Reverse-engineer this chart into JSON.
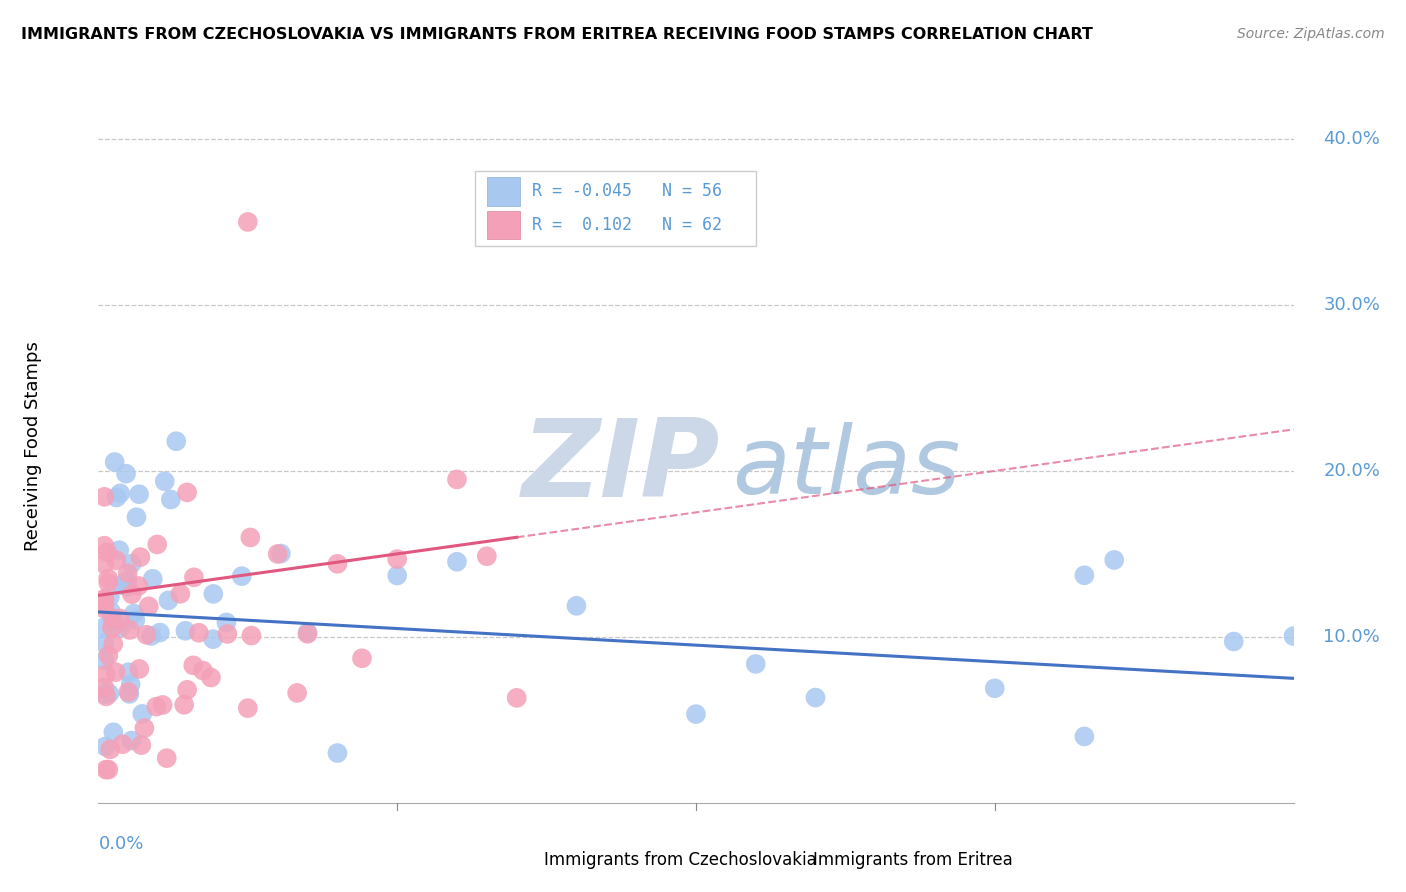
{
  "title": "IMMIGRANTS FROM CZECHOSLOVAKIA VS IMMIGRANTS FROM ERITREA RECEIVING FOOD STAMPS CORRELATION CHART",
  "source": "Source: ZipAtlas.com",
  "ylabel": "Receiving Food Stamps",
  "ytick_labels": [
    "10.0%",
    "20.0%",
    "30.0%",
    "40.0%"
  ],
  "ytick_vals": [
    0.1,
    0.2,
    0.3,
    0.4
  ],
  "xlim": [
    0.0,
    0.2
  ],
  "ylim": [
    0.0,
    0.43
  ],
  "legend_R1": "-0.045",
  "legend_N1": "56",
  "legend_R2": "0.102",
  "legend_N2": "62",
  "color_czech": "#a8c8f0",
  "color_eritrea": "#f4a0b8",
  "color_czech_line": "#4472c4",
  "color_eritrea_line": "#e05880",
  "color_grid": "#c8c8c8",
  "color_axis_label": "#5b9bd5",
  "watermark_color": "#ccd8e8",
  "title_fontsize": 11.5,
  "source_fontsize": 10,
  "axis_label_fontsize": 13,
  "tick_label_fontsize": 13
}
